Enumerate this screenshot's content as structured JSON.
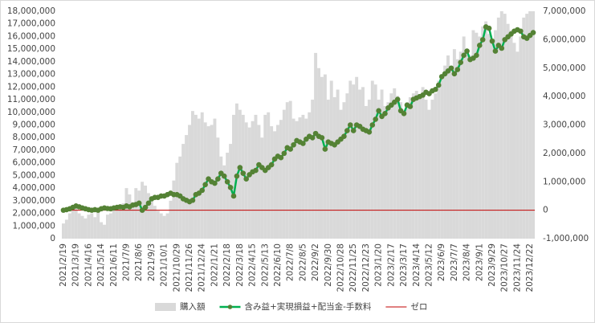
{
  "chart_data": {
    "type": "bar_line",
    "categories": [
      "2021/2/19",
      null,
      null,
      null,
      "2021/3/19",
      null,
      null,
      null,
      "2021/4/16",
      null,
      null,
      null,
      "2021/5/14",
      null,
      null,
      null,
      "2021/6/11",
      null,
      null,
      null,
      "2021/7/9",
      null,
      null,
      null,
      "2021/8/6",
      null,
      null,
      null,
      "2021/9/3",
      null,
      null,
      null,
      "2021/10/1",
      null,
      null,
      null,
      "2021/10/29",
      null,
      null,
      null,
      "2021/11/26",
      null,
      null,
      null,
      "2021/12/24",
      null,
      null,
      null,
      "2022/1/21",
      null,
      null,
      null,
      "2022/2/18",
      null,
      null,
      null,
      "2022/3/18",
      null,
      null,
      null,
      "2022/4/15",
      null,
      null,
      null,
      "2022/5/13",
      null,
      null,
      null,
      "2022/6/10",
      null,
      null,
      null,
      "2022/7/8",
      null,
      null,
      null,
      "2022/8/5",
      null,
      null,
      null,
      "2022/9/2",
      null,
      null,
      null,
      "2022/9/30",
      null,
      null,
      null,
      "2022/10/28",
      null,
      null,
      null,
      "2022/11/25",
      null,
      null,
      null,
      "2022/12/23",
      null,
      null,
      null,
      "2023/1/20",
      null,
      null,
      null,
      "2023/2/17",
      null,
      null,
      null,
      "2023/3/17",
      null,
      null,
      null,
      "2023/4/14",
      null,
      null,
      null,
      "2023/5/12",
      null,
      null,
      null,
      "2023/6/9",
      null,
      null,
      null,
      "2023/7/7",
      null,
      null,
      null,
      "2023/8/4",
      null,
      null,
      null,
      "2023/9/1",
      null,
      null,
      null,
      "2023/9/29",
      null,
      null,
      null,
      "2023/10/27",
      null,
      null,
      null,
      "2023/11/24",
      null,
      null,
      null,
      "2023/12/22",
      null
    ],
    "series": [
      {
        "name": "購入額",
        "type": "bar",
        "color": "#d9d9d9",
        "values": [
          1200000,
          1500000,
          2000000,
          2300000,
          2500000,
          2000000,
          1800000,
          1600000,
          1900000,
          2000000,
          1700000,
          2100000,
          1300000,
          1100000,
          1900000,
          2000000,
          2300000,
          2500000,
          2700000,
          2800000,
          4000000,
          3500000,
          2900000,
          4000000,
          3800000,
          4500000,
          4200000,
          3600000,
          3000000,
          2600000,
          2200000,
          2000000,
          1800000,
          2000000,
          3000000,
          4600000,
          6000000,
          6500000,
          7500000,
          8200000,
          9000000,
          10100000,
          9800000,
          9500000,
          10000000,
          9200000,
          8900000,
          9000000,
          9500000,
          8000000,
          6500000,
          5800000,
          6800000,
          7500000,
          9800000,
          10700000,
          10200000,
          9800000,
          9200000,
          8800000,
          9300000,
          9800000,
          9000000,
          8000000,
          9800000,
          10000000,
          8900000,
          8500000,
          9000000,
          9400000,
          10200000,
          10800000,
          10900000,
          9500000,
          9300000,
          9600000,
          9800000,
          9500000,
          10000000,
          11000000,
          14700000,
          13500000,
          12800000,
          13000000,
          11000000,
          12500000,
          11200000,
          11800000,
          10200000,
          10800000,
          11500000,
          12500000,
          12200000,
          12800000,
          11800000,
          12000000,
          10500000,
          11000000,
          12500000,
          12200000,
          11000000,
          11800000,
          10500000,
          10800000,
          11500000,
          11900000,
          11300000,
          10800000,
          10200000,
          10800000,
          11200000,
          11500000,
          11700000,
          11400000,
          12000000,
          11000000,
          10200000,
          11000000,
          11500000,
          12500000,
          13000000,
          13700000,
          14500000,
          13500000,
          15000000,
          14200000,
          14800000,
          16000000,
          15000000,
          14500000,
          16500000,
          16300000,
          16000000,
          16800000,
          17200000,
          16200000,
          15800000,
          16500000,
          17500000,
          18000000,
          17800000,
          17000000,
          16500000,
          15500000,
          14800000,
          16000000,
          17500000,
          17800000,
          18000000,
          18000000
        ]
      },
      {
        "name": "含み益+実現損益+配当金-手数料",
        "type": "line",
        "axis": "y2",
        "color": "#00b050",
        "marker_color": "#548235",
        "values": [
          0,
          20000,
          50000,
          100000,
          150000,
          120000,
          80000,
          50000,
          20000,
          0,
          20000,
          0,
          50000,
          80000,
          60000,
          50000,
          80000,
          100000,
          120000,
          100000,
          150000,
          120000,
          180000,
          200000,
          250000,
          0,
          100000,
          250000,
          400000,
          450000,
          450000,
          500000,
          500000,
          550000,
          600000,
          550000,
          550000,
          500000,
          400000,
          350000,
          300000,
          350000,
          550000,
          600000,
          700000,
          900000,
          1100000,
          1000000,
          950000,
          1100000,
          1300000,
          1200000,
          1000000,
          800000,
          500000,
          1200000,
          1500000,
          1300000,
          1100000,
          1250000,
          1350000,
          1400000,
          1600000,
          1500000,
          1400000,
          1500000,
          1600000,
          1800000,
          1900000,
          1850000,
          2000000,
          2200000,
          2150000,
          2300000,
          2450000,
          2400000,
          2350000,
          2500000,
          2600000,
          2550000,
          2700000,
          2600000,
          2550000,
          2150000,
          2400000,
          2350000,
          2300000,
          2400000,
          2500000,
          2600000,
          2800000,
          3000000,
          2800000,
          3000000,
          2950000,
          2850000,
          2800000,
          2750000,
          3000000,
          3200000,
          3500000,
          3300000,
          3400000,
          3600000,
          3700000,
          3800000,
          3900000,
          3500000,
          3400000,
          3700000,
          3650000,
          3900000,
          3950000,
          4000000,
          4050000,
          4150000,
          4100000,
          4200000,
          4250000,
          4400000,
          4700000,
          4800000,
          4900000,
          5000000,
          4800000,
          4950000,
          5200000,
          5450000,
          5600000,
          5300000,
          5350000,
          5450000,
          5800000,
          6000000,
          6450000,
          6400000,
          5950000,
          5600000,
          5800000,
          5700000,
          6000000,
          6100000,
          6200000,
          6300000,
          6350000,
          6300000,
          6100000,
          6050000,
          6150000,
          6250000
        ]
      }
    ],
    "zero_line": {
      "name": "ゼロ",
      "color": "#c00000",
      "value": 0,
      "axis": "y2"
    },
    "ylim": [
      0,
      18000000
    ],
    "yticks": [
      0,
      {
        "value": 1000000,
        "label": "1,000,000"
      },
      {
        "value": 2000000,
        "label": "2,000,000"
      },
      {
        "value": 3000000,
        "label": "3,000,000"
      },
      {
        "value": 4000000,
        "label": "4,000,000"
      },
      {
        "value": 5000000,
        "label": "5,000,000"
      },
      {
        "value": 6000000,
        "label": "6,000,000"
      },
      {
        "value": 7000000,
        "label": "7,000,000"
      },
      {
        "value": 8000000,
        "label": "8,000,000"
      },
      {
        "value": 9000000,
        "label": "9,000,000"
      },
      {
        "value": 10000000,
        "label": "10,000,000"
      },
      {
        "value": 11000000,
        "label": "11,000,000"
      },
      {
        "value": 12000000,
        "label": "12,000,000"
      },
      {
        "value": 13000000,
        "label": "13,000,000"
      },
      {
        "value": 14000000,
        "label": "14,000,000"
      },
      {
        "value": 15000000,
        "label": "15,000,000"
      },
      {
        "value": 16000000,
        "label": "16,000,000"
      },
      {
        "value": 17000000,
        "label": "17,000,000"
      },
      {
        "value": 18000000,
        "label": "18,000,000"
      }
    ],
    "y2lim": [
      -1000000,
      7000000
    ],
    "y2ticks": [
      {
        "value": -1000000,
        "label": "-1,000,000"
      },
      0,
      {
        "value": 1000000,
        "label": "1,000,000"
      },
      {
        "value": 2000000,
        "label": "2,000,000"
      },
      {
        "value": 3000000,
        "label": "3,000,000"
      },
      {
        "value": 4000000,
        "label": "4,000,000"
      },
      {
        "value": 5000000,
        "label": "5,000,000"
      },
      {
        "value": 6000000,
        "label": "6,000,000"
      },
      {
        "value": 7000000,
        "label": "7,000,000"
      }
    ],
    "legend": "bottom"
  }
}
